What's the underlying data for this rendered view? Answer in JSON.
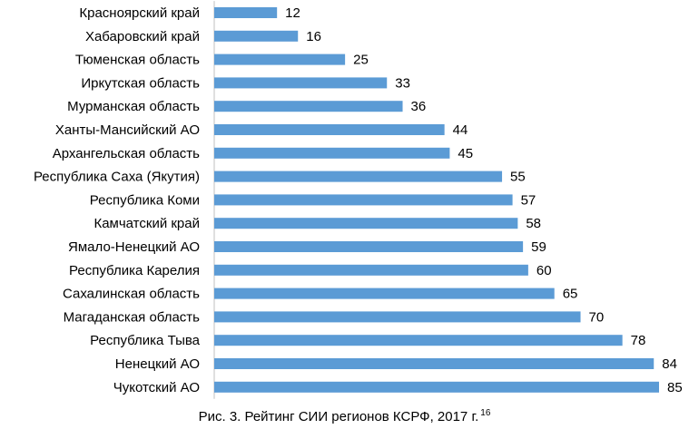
{
  "chart_data": {
    "type": "bar",
    "orientation": "horizontal",
    "categories": [
      "Красноярский край",
      "Хабаровский край",
      "Тюменская область",
      "Иркутская область",
      "Мурманская область",
      "Ханты-Мансийский АО",
      "Архангельская область",
      "Республика Саха (Якутия)",
      "Республика Коми",
      "Камчатский край",
      "Ямало-Ненецкий АО",
      "Республика Карелия",
      "Сахалинская область",
      "Магаданская область",
      "Республика Тыва",
      "Ненецкий АО",
      "Чукотский АО"
    ],
    "values": [
      12,
      16,
      25,
      33,
      36,
      44,
      45,
      55,
      57,
      58,
      59,
      60,
      65,
      70,
      78,
      84,
      85
    ],
    "xlim": [
      0,
      85
    ],
    "grid": false,
    "legend": "none",
    "bar_color": "#5B9BD5",
    "data_labels": true
  },
  "caption": {
    "text": "Рис. 3. Рейтинг СИИ регионов КСРФ, 2017 г.",
    "footnote": "16"
  }
}
